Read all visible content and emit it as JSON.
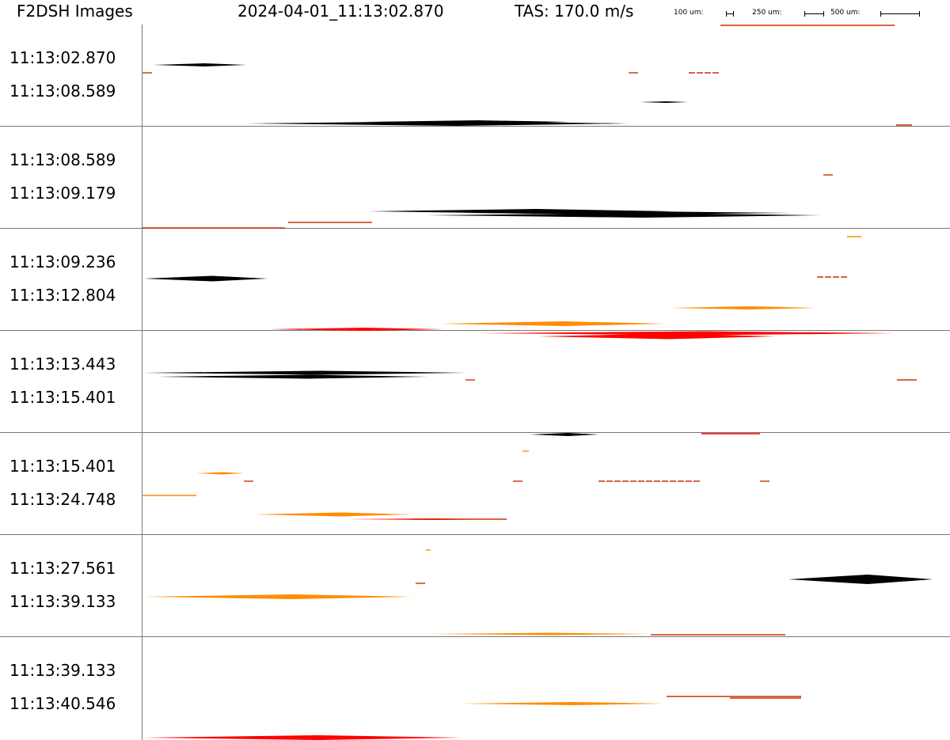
{
  "header": {
    "title": "F2DSH Images",
    "timestamp": "2024-04-01_11:13:02.870",
    "tas": "TAS: 170.0 m/s",
    "scale_labels": [
      "100 um:",
      "250 um:",
      "500 um:"
    ]
  },
  "colors": {
    "black": "#000000",
    "red": "#ff0000",
    "orange": "#ff8c00",
    "darkred": "#cc3300",
    "separator": "#777777"
  },
  "strips": [
    {
      "t1": "11:13:02.870",
      "t2": "11:13:08.589"
    },
    {
      "t1": "11:13:08.589",
      "t2": "11:13:09.179"
    },
    {
      "t1": "11:13:09.236",
      "t2": "11:13:12.804"
    },
    {
      "t1": "11:13:13.443",
      "t2": "11:13:15.401"
    },
    {
      "t1": "11:13:15.401",
      "t2": "11:13:24.748"
    },
    {
      "t1": "11:13:27.561",
      "t2": "11:13:39.133"
    },
    {
      "t1": "11:13:39.133",
      "t2": "11:13:40.546"
    }
  ]
}
